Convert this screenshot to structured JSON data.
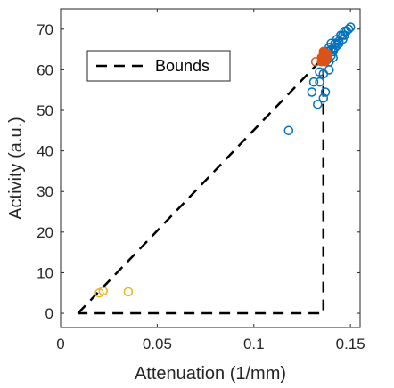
{
  "chart_data": {
    "type": "scatter",
    "xlabel": "Attenuation (1/mm)",
    "ylabel": "Activity (a.u.)",
    "xlim": [
      0,
      0.155
    ],
    "ylim": [
      -3.5,
      75
    ],
    "xticks": [
      0,
      0.05,
      0.1,
      0.15
    ],
    "xtick_labels": [
      "0",
      "0.05",
      "0.1",
      "0.15"
    ],
    "yticks": [
      0,
      10,
      20,
      30,
      40,
      50,
      60,
      70
    ],
    "ytick_labels": [
      "0",
      "10",
      "20",
      "30",
      "40",
      "50",
      "60",
      "70"
    ],
    "grid": false,
    "legend": {
      "position": "top-left",
      "entries": [
        {
          "label": "Bounds",
          "style": "dashed-line"
        }
      ]
    },
    "bounds": {
      "color": "#000000",
      "points": [
        [
          0.009,
          0
        ],
        [
          0.133,
          61.5
        ],
        [
          0.136,
          61.5
        ],
        [
          0.136,
          0
        ],
        [
          0.009,
          0
        ]
      ]
    },
    "series": [
      {
        "color": "#0072BD",
        "filled": false,
        "points": [
          [
            0.118,
            45
          ],
          [
            0.133,
            51.5
          ],
          [
            0.13,
            54.5
          ],
          [
            0.131,
            57
          ],
          [
            0.134,
            57
          ],
          [
            0.136,
            53
          ],
          [
            0.137,
            54.5
          ],
          [
            0.136,
            59
          ],
          [
            0.134,
            59.5
          ],
          [
            0.139,
            60
          ],
          [
            0.139,
            62
          ],
          [
            0.14,
            63.5
          ],
          [
            0.14,
            65
          ],
          [
            0.141,
            65
          ],
          [
            0.142,
            66.5
          ],
          [
            0.143,
            66
          ],
          [
            0.143,
            67.5
          ],
          [
            0.144,
            67
          ],
          [
            0.145,
            68.5
          ],
          [
            0.146,
            68.5
          ],
          [
            0.147,
            69.5
          ],
          [
            0.148,
            69.5
          ],
          [
            0.149,
            70
          ],
          [
            0.15,
            70.5
          ],
          [
            0.141,
            64.5
          ],
          [
            0.142,
            65.5
          ],
          [
            0.144,
            66.5
          ],
          [
            0.146,
            67.5
          ],
          [
            0.147,
            68.5
          ],
          [
            0.138,
            64.5
          ],
          [
            0.139,
            65.5
          ],
          [
            0.14,
            66.5
          ],
          [
            0.137,
            63
          ],
          [
            0.138,
            62.5
          ],
          [
            0.141,
            63
          ]
        ]
      },
      {
        "color": "#D95319",
        "filled": true,
        "points": [
          [
            0.135,
            62
          ],
          [
            0.135,
            63
          ],
          [
            0.136,
            63.5
          ],
          [
            0.136,
            62.5
          ],
          [
            0.137,
            64
          ],
          [
            0.137,
            62
          ],
          [
            0.138,
            63
          ],
          [
            0.138,
            64
          ],
          [
            0.136,
            64.5
          ],
          [
            0.137,
            63.5
          ]
        ]
      },
      {
        "color": "#D95319",
        "filled": false,
        "points": [
          [
            0.132,
            62
          ]
        ]
      },
      {
        "color": "#EDB120",
        "filled": false,
        "points": [
          [
            0.02,
            5
          ],
          [
            0.022,
            5.5
          ],
          [
            0.035,
            5.3
          ]
        ]
      }
    ]
  }
}
